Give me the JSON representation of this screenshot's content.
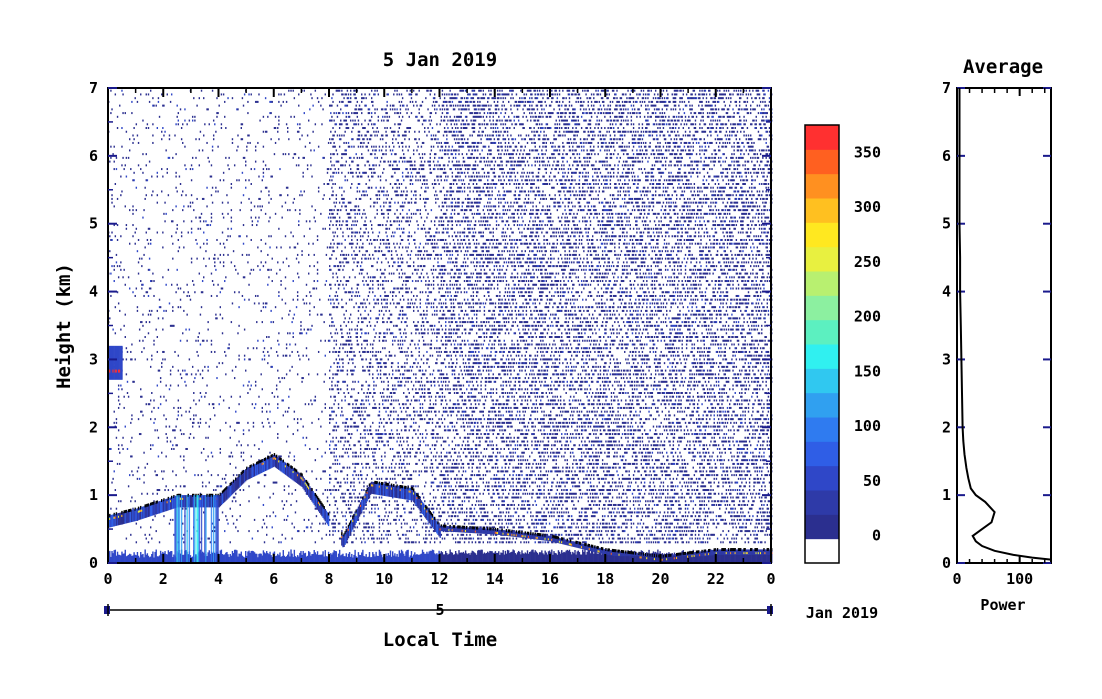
{
  "chart_data": [
    {
      "type": "heatmap",
      "title": "5 Jan 2019",
      "xlabel": "Local Time",
      "ylabel": "Height (km)",
      "xlim": [
        0,
        24
      ],
      "ylim": [
        0,
        7
      ],
      "x_ticks": [
        "0",
        "2",
        "4",
        "6",
        "8",
        "10",
        "12",
        "14",
        "16",
        "18",
        "20",
        "22",
        "0"
      ],
      "y_ticks": [
        "0",
        "1",
        "2",
        "3",
        "4",
        "5",
        "6",
        "7"
      ],
      "date_bar": {
        "day_label": "5",
        "month_label": "Jan 2019"
      },
      "colorbar": {
        "ticks": [
          "0",
          "50",
          "100",
          "150",
          "200",
          "250",
          "300",
          "350"
        ],
        "range": [
          -25,
          375
        ],
        "colors": [
          "#ffffff",
          "#2b2f8f",
          "#2e3aa8",
          "#2f47c8",
          "#2f5ee6",
          "#2f7bf0",
          "#30a0f0",
          "#30c8f0",
          "#30f0f0",
          "#5cf0c0",
          "#8cf0a0",
          "#b8f070",
          "#e8f040",
          "#ffe820",
          "#ffc020",
          "#ff9020",
          "#ff6020",
          "#ff3030"
        ]
      },
      "features": [
        {
          "desc": "surface layer",
          "x": [
            0,
            24
          ],
          "height_top": 0.2
        },
        {
          "desc": "boundary layer top",
          "points": [
            [
              0,
              0.7
            ],
            [
              1,
              0.8
            ],
            [
              2.5,
              1.0
            ],
            [
              4,
              1.0
            ],
            [
              5,
              1.4
            ],
            [
              6,
              1.6
            ],
            [
              7,
              1.3
            ],
            [
              8.5,
              0.4
            ],
            [
              9.5,
              1.2
            ],
            [
              11,
              1.1
            ],
            [
              12,
              0.55
            ],
            [
              14,
              0.5
            ],
            [
              16,
              0.4
            ],
            [
              18,
              0.2
            ],
            [
              20,
              0.1
            ],
            [
              22,
              0.2
            ],
            [
              24,
              0.2
            ]
          ]
        },
        {
          "desc": "early cloud",
          "x": [
            0,
            0.5
          ],
          "height": [
            2.7,
            3.2
          ]
        }
      ]
    },
    {
      "type": "line",
      "title": "Average",
      "xlabel": "Power",
      "ylabel": "",
      "xlim": [
        0,
        150
      ],
      "ylim": [
        0,
        7
      ],
      "x_ticks": [
        "0",
        "100"
      ],
      "y_ticks": [
        "0",
        "1",
        "2",
        "3",
        "4",
        "5",
        "6",
        "7"
      ],
      "series": [
        {
          "x": [
            150,
            120,
            90,
            60,
            40,
            30,
            25,
            40,
            55,
            60,
            45,
            30,
            22,
            18,
            15,
            12,
            10,
            9,
            8,
            7,
            6,
            5,
            5,
            4,
            4
          ],
          "y": [
            0.05,
            0.08,
            0.12,
            0.18,
            0.25,
            0.32,
            0.4,
            0.5,
            0.6,
            0.75,
            0.9,
            1.0,
            1.1,
            1.25,
            1.4,
            1.6,
            1.8,
            2.0,
            2.5,
            3.0,
            3.5,
            4.0,
            4.5,
            5.0,
            7.0
          ]
        }
      ]
    }
  ]
}
